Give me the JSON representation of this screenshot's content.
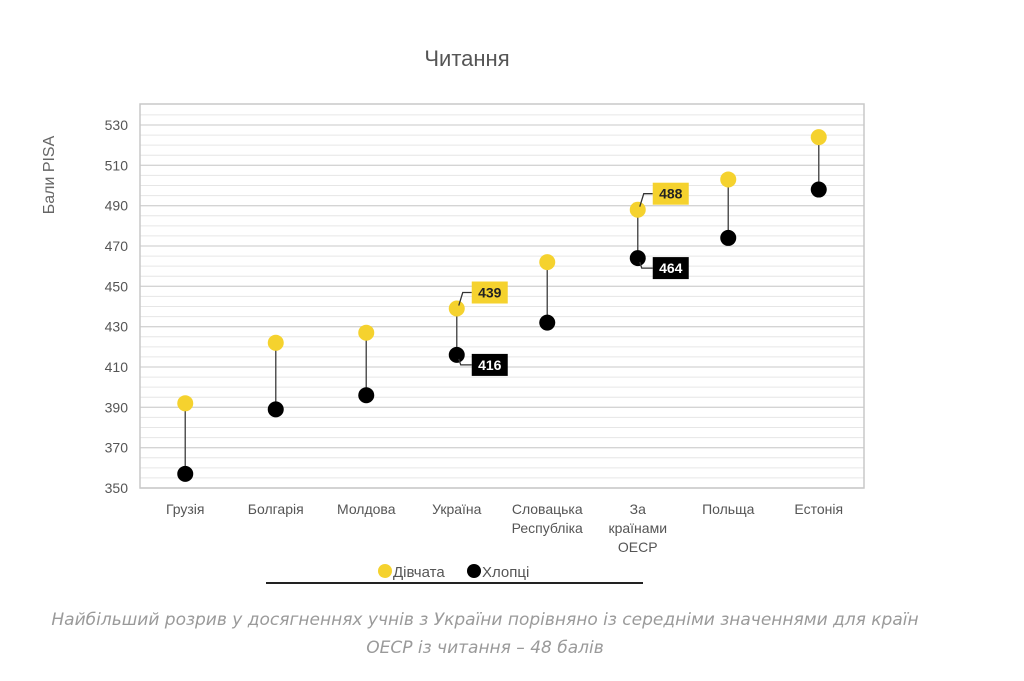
{
  "chart_data": {
    "type": "dumbbell",
    "title": "Читання",
    "ylabel": "Бали PISA",
    "xlabel": "",
    "ylim": [
      350,
      540
    ],
    "yticks": [
      350,
      370,
      390,
      410,
      430,
      450,
      470,
      490,
      510,
      530
    ],
    "minor_grid_step": 5,
    "grid": true,
    "categories": [
      "Грузія",
      "Болгарія",
      "Молдова",
      "Україна",
      "Словацька Республіка",
      "За країнами ОЕСР",
      "Польща",
      "Естонія"
    ],
    "category_lines": [
      [
        "Грузія"
      ],
      [
        "Болгарія"
      ],
      [
        "Молдова"
      ],
      [
        "Україна"
      ],
      [
        "Словацька",
        "Республіка"
      ],
      [
        "За",
        "країнами",
        "ОЕСР"
      ],
      [
        "Польща"
      ],
      [
        "Естонія"
      ]
    ],
    "series": [
      {
        "name": "Дівчата",
        "color": "#f5d22e",
        "values": [
          392,
          422,
          427,
          439,
          462,
          488,
          503,
          524
        ]
      },
      {
        "name": "Хлопці",
        "color": "#000000",
        "values": [
          357,
          389,
          396,
          416,
          432,
          464,
          474,
          498
        ]
      }
    ],
    "data_labels": [
      {
        "category": "Україна",
        "series": "Дівчата",
        "text": "439"
      },
      {
        "category": "Україна",
        "series": "Хлопці",
        "text": "416"
      },
      {
        "category": "За країнами ОЕСР",
        "series": "Дівчата",
        "text": "488"
      },
      {
        "category": "За країнами ОЕСР",
        "series": "Хлопці",
        "text": "464"
      }
    ],
    "legend": {
      "placement": "bottom",
      "entries": [
        "Дівчата",
        "Хлопці"
      ]
    }
  },
  "caption": {
    "line1": "Найбільший розрив у досягненнях учнів з України порівняно із середніми значеннями для країн",
    "line2": "ОЕСР із читання – 48 балів"
  }
}
